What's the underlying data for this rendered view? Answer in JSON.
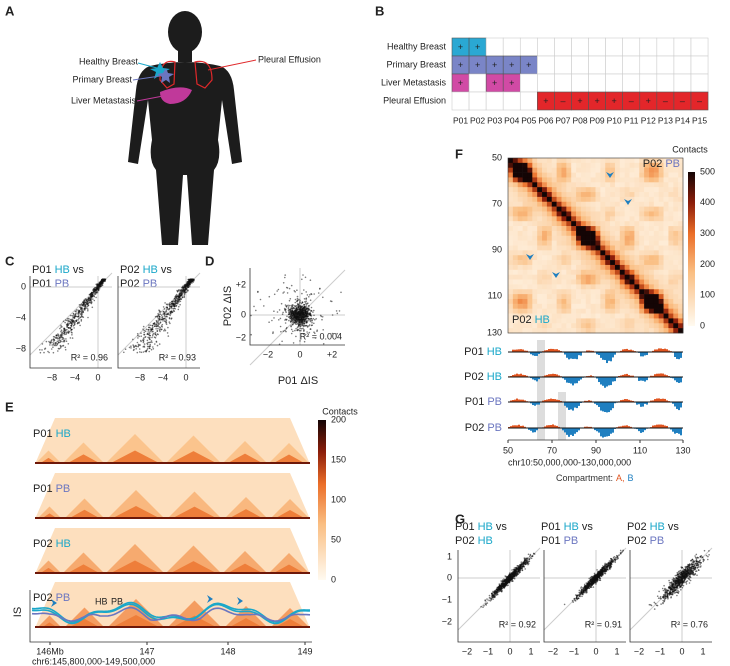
{
  "panel_labels": [
    "A",
    "B",
    "C",
    "D",
    "E",
    "F",
    "G"
  ],
  "sample_colors": {
    "HB": "#1aa7c9",
    "PB": "#6b76c0"
  },
  "a": {
    "labels": [
      {
        "text": "Healthy Breast",
        "color": "#1aa7c9"
      },
      {
        "text": "Primary Breast",
        "color": "#6b76c0"
      },
      {
        "text": "Liver Metastasis",
        "color": "#c0399a"
      },
      {
        "text": "Pleural Effusion",
        "color": "#e0282a"
      }
    ]
  },
  "b": {
    "columns": [
      "P01",
      "P02",
      "P03",
      "P04",
      "P05",
      "P06",
      "P07",
      "P08",
      "P09",
      "P10",
      "P11",
      "P12",
      "P13",
      "P14",
      "P15"
    ],
    "rows": [
      {
        "name": "Healthy Breast",
        "color": "#2aa8d3",
        "cells": [
          "+",
          "+",
          null,
          null,
          null,
          null,
          null,
          null,
          null,
          null,
          null,
          null,
          null,
          null,
          null
        ]
      },
      {
        "name": "Primary Breast",
        "color": "#7a85c7",
        "cells": [
          "+",
          "+",
          "+",
          "+",
          "+",
          null,
          null,
          null,
          null,
          null,
          null,
          null,
          null,
          null,
          null
        ]
      },
      {
        "name": "Liver Metastasis",
        "color": "#d14aa5",
        "cells": [
          "+",
          null,
          "+",
          "+",
          null,
          null,
          null,
          null,
          null,
          null,
          null,
          null,
          null,
          null,
          null
        ]
      },
      {
        "name": "Pleural Effusion",
        "color": "#e3262a",
        "cells": [
          null,
          null,
          null,
          null,
          null,
          "+",
          "–",
          "+",
          "+",
          "+",
          "–",
          "+",
          "–",
          "–",
          "–"
        ]
      }
    ]
  },
  "c": {
    "panels": [
      {
        "title": [
          [
            "P01",
            "HB",
            "vs"
          ],
          [
            "P01",
            "PB"
          ]
        ],
        "r2": "R² = 0.96"
      },
      {
        "title": [
          [
            "P02",
            "HB",
            "vs"
          ],
          [
            "P02",
            "PB"
          ]
        ],
        "r2": "R² = 0.93"
      }
    ],
    "yticks": [
      "0",
      "−4",
      "−8"
    ],
    "xticks": [
      "−8",
      "−4",
      "0"
    ]
  },
  "d": {
    "ylabel": "P02 ΔIS",
    "xlabel": "P01 ΔIS",
    "r2": "R² = 0.004",
    "yticks": [
      "+2",
      "0",
      "−2"
    ],
    "xticks": [
      "−2",
      "0",
      "+2"
    ]
  },
  "e": {
    "tracks": [
      [
        "P01",
        "HB"
      ],
      [
        "P01",
        "PB"
      ],
      [
        "P02",
        "HB"
      ],
      [
        "P02",
        "PB"
      ]
    ],
    "colorbar_title": "Contacts",
    "colorbar_ticks": [
      "0",
      "50",
      "100",
      "150",
      "200"
    ],
    "is_label": "IS",
    "legend": [
      "HB",
      "PB"
    ],
    "xticks": [
      "146Mb",
      "147",
      "148",
      "149"
    ],
    "region": "chr6:145,800,000-149,500,000"
  },
  "f": {
    "top_label": [
      "P02",
      "PB"
    ],
    "bottom_label": [
      "P02",
      "HB"
    ],
    "yticks": [
      "50",
      "70",
      "90",
      "110",
      "130"
    ],
    "colorbar_title": "Contacts",
    "colorbar_ticks": [
      "0",
      "100",
      "200",
      "300",
      "400",
      "500"
    ],
    "tracks": [
      [
        "P01",
        "HB"
      ],
      [
        "P02",
        "HB"
      ],
      [
        "P01",
        "PB"
      ],
      [
        "P02",
        "PB"
      ]
    ],
    "xticks": [
      "50",
      "70",
      "90",
      "110",
      "130"
    ],
    "region": "chr10:50,000,000-130,000,000",
    "compartment_legend": [
      {
        "text": "Compartment:",
        "color": "#333333"
      },
      {
        "text": "A,",
        "color": "#e0541f"
      },
      {
        "text": "B",
        "color": "#1f7fc0"
      }
    ]
  },
  "g": {
    "panels": [
      {
        "title": [
          [
            "P01",
            "HB",
            "vs"
          ],
          [
            "P02",
            "HB"
          ]
        ],
        "r2": "R² = 0.92"
      },
      {
        "title": [
          [
            "P01",
            "HB",
            "vs"
          ],
          [
            "P01",
            "PB"
          ]
        ],
        "r2": "R² = 0.91"
      },
      {
        "title": [
          [
            "P02",
            "HB",
            "vs"
          ],
          [
            "P02",
            "PB"
          ]
        ],
        "r2": "R² = 0.76"
      }
    ],
    "yticks": [
      "1",
      "0",
      "−1",
      "−2"
    ],
    "xticks": [
      "−2",
      "−1",
      "0",
      "1"
    ]
  }
}
